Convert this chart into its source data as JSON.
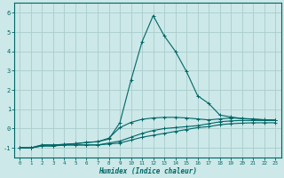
{
  "xlabel": "Humidex (Indice chaleur)",
  "xlim": [
    -0.5,
    23.5
  ],
  "ylim": [
    -1.5,
    6.5
  ],
  "yticks": [
    -1,
    0,
    1,
    2,
    3,
    4,
    5,
    6
  ],
  "xticks": [
    0,
    1,
    2,
    3,
    4,
    5,
    6,
    7,
    8,
    9,
    10,
    11,
    12,
    13,
    14,
    15,
    16,
    17,
    18,
    19,
    20,
    21,
    22,
    23
  ],
  "bg_color": "#cce8e8",
  "grid_color": "#aacccc",
  "line_color": "#006666",
  "humidex_x": [
    0,
    1,
    2,
    3,
    4,
    5,
    6,
    7,
    8,
    9,
    10,
    11,
    12,
    13,
    14,
    15,
    16,
    17,
    18,
    19,
    20,
    21,
    22,
    23
  ],
  "line1_y": [
    -1.0,
    -1.0,
    -0.9,
    -0.9,
    -0.85,
    -0.85,
    -0.85,
    -0.85,
    -0.8,
    -0.75,
    -0.6,
    -0.45,
    -0.35,
    -0.25,
    -0.15,
    -0.05,
    0.05,
    0.1,
    0.2,
    0.25,
    0.28,
    0.3,
    0.3,
    0.3
  ],
  "line2_y": [
    -1.0,
    -1.0,
    -0.9,
    -0.9,
    -0.85,
    -0.85,
    -0.85,
    -0.85,
    -0.75,
    -0.65,
    -0.45,
    -0.25,
    -0.1,
    0.0,
    0.05,
    0.1,
    0.15,
    0.25,
    0.35,
    0.4,
    0.42,
    0.42,
    0.42,
    0.42
  ],
  "line3_y": [
    -1.0,
    -1.0,
    -0.85,
    -0.85,
    -0.82,
    -0.78,
    -0.72,
    -0.68,
    -0.55,
    0.3,
    2.5,
    4.5,
    5.85,
    4.8,
    4.0,
    2.95,
    1.7,
    1.3,
    0.7,
    0.6,
    0.52,
    0.48,
    0.44,
    0.44
  ],
  "line4_y": [
    -1.0,
    -1.0,
    -0.85,
    -0.85,
    -0.82,
    -0.78,
    -0.72,
    -0.68,
    -0.5,
    0.05,
    0.32,
    0.48,
    0.55,
    0.58,
    0.58,
    0.55,
    0.5,
    0.45,
    0.5,
    0.55,
    0.52,
    0.5,
    0.46,
    0.44
  ]
}
